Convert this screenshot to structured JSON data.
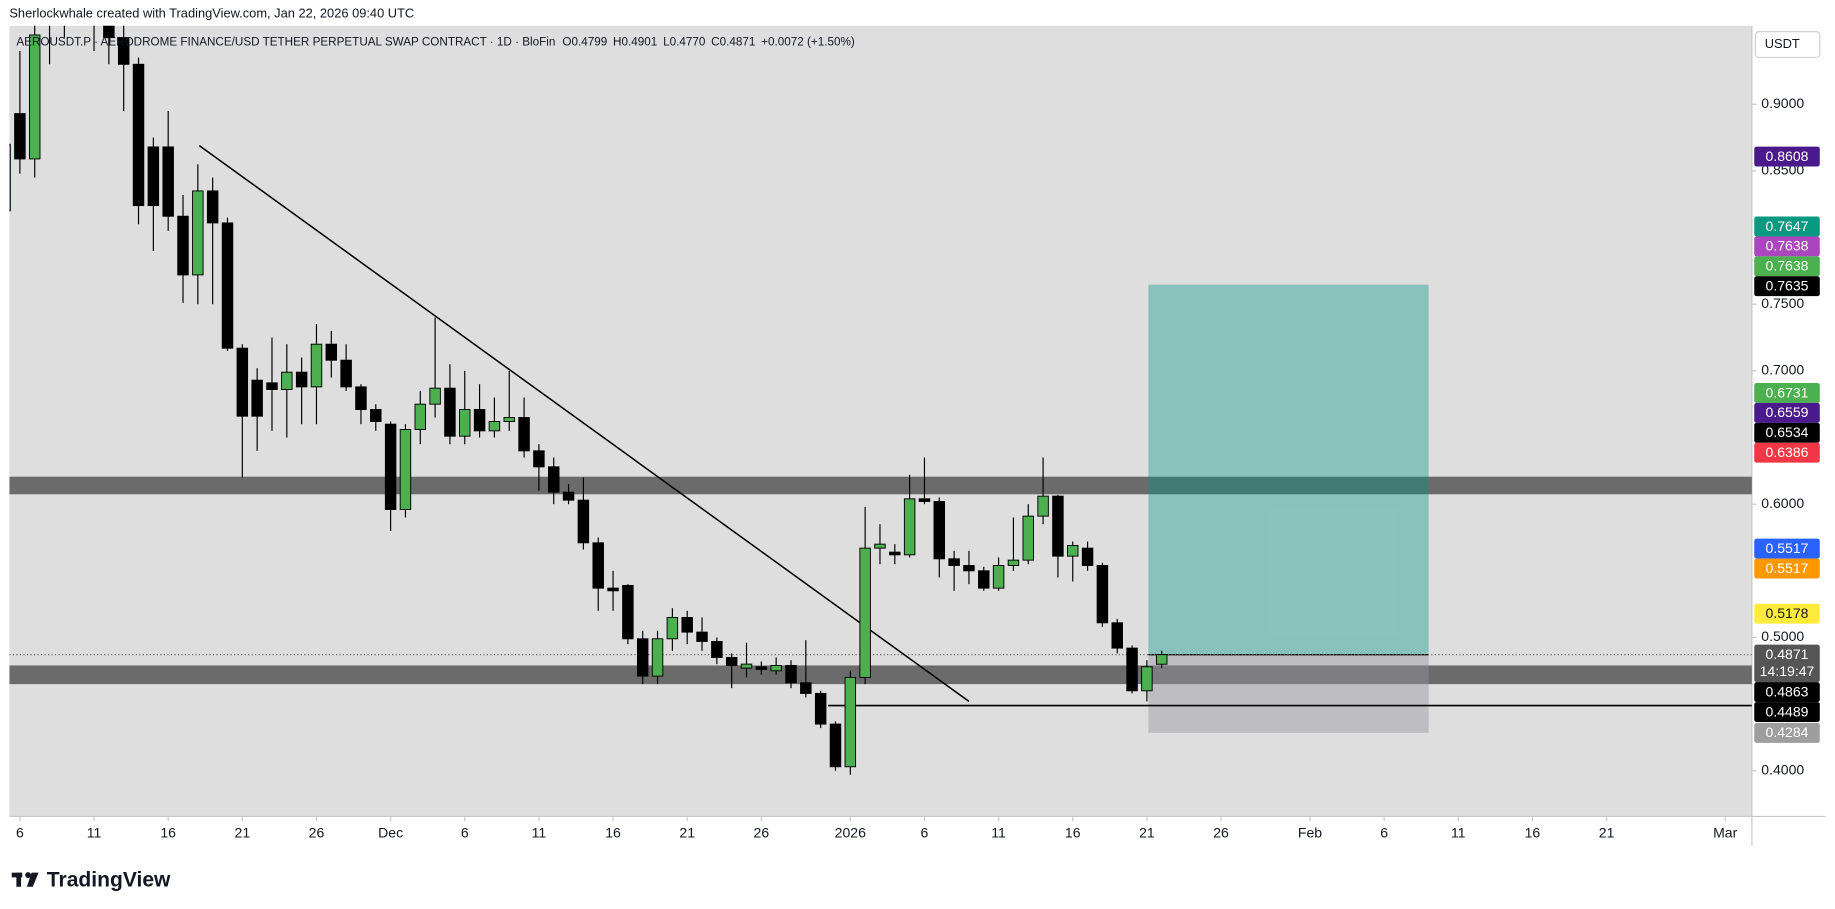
{
  "chart_data": {
    "type": "candlestick",
    "attribution": "Sherlockwhale created with TradingView.com, Jan 22, 2026 09:40 UTC",
    "symbol": "AEROUSDT.P · AERODROME FINANCE/USD TETHER PERPETUAL SWAP CONTRACT · 1D · BloFin",
    "legend_values": [
      "O0.4799",
      "H0.4901",
      "L0.4770",
      "C0.4871",
      "+0.0072 (+1.50%)"
    ],
    "currency": "USDT",
    "brand": "TradingView",
    "up_color": "#4caf50",
    "down_color": "#000000",
    "candles": [
      [
        0.82,
        0.88,
        0.81,
        0.87
      ],
      [
        0.893,
        0.94,
        0.848,
        0.859
      ],
      [
        0.859,
        0.96,
        0.845,
        0.952
      ],
      [
        0.96,
        1.0,
        0.93,
        0.97
      ],
      [
        0.97,
        1.02,
        0.95,
        1.0
      ],
      [
        1.0,
        1.03,
        0.96,
        0.98
      ],
      [
        0.98,
        0.99,
        0.94,
        0.96
      ],
      [
        0.96,
        0.98,
        0.93,
        0.95
      ],
      [
        0.95,
        0.97,
        0.895,
        0.93
      ],
      [
        0.93,
        0.935,
        0.81,
        0.824
      ],
      [
        0.868,
        0.875,
        0.79,
        0.824
      ],
      [
        0.868,
        0.895,
        0.805,
        0.816
      ],
      [
        0.816,
        0.832,
        0.751,
        0.772
      ],
      [
        0.772,
        0.855,
        0.75,
        0.835
      ],
      [
        0.835,
        0.845,
        0.75,
        0.811
      ],
      [
        0.811,
        0.815,
        0.715,
        0.717
      ],
      [
        0.717,
        0.72,
        0.62,
        0.666
      ],
      [
        0.693,
        0.702,
        0.64,
        0.666
      ],
      [
        0.691,
        0.725,
        0.655,
        0.686
      ],
      [
        0.686,
        0.72,
        0.65,
        0.699
      ],
      [
        0.699,
        0.71,
        0.66,
        0.688
      ],
      [
        0.688,
        0.735,
        0.66,
        0.72
      ],
      [
        0.72,
        0.73,
        0.695,
        0.708
      ],
      [
        0.708,
        0.72,
        0.685,
        0.688
      ],
      [
        0.688,
        0.69,
        0.66,
        0.671
      ],
      [
        0.671,
        0.675,
        0.655,
        0.662
      ],
      [
        0.66,
        0.662,
        0.58,
        0.596
      ],
      [
        0.596,
        0.66,
        0.59,
        0.656
      ],
      [
        0.656,
        0.685,
        0.645,
        0.675
      ],
      [
        0.675,
        0.74,
        0.665,
        0.687
      ],
      [
        0.687,
        0.705,
        0.645,
        0.651
      ],
      [
        0.651,
        0.7,
        0.645,
        0.671
      ],
      [
        0.671,
        0.69,
        0.65,
        0.655
      ],
      [
        0.655,
        0.68,
        0.65,
        0.662
      ],
      [
        0.662,
        0.7,
        0.655,
        0.665
      ],
      [
        0.665,
        0.68,
        0.635,
        0.64
      ],
      [
        0.64,
        0.645,
        0.61,
        0.628
      ],
      [
        0.628,
        0.635,
        0.6,
        0.609
      ],
      [
        0.609,
        0.615,
        0.6,
        0.603
      ],
      [
        0.603,
        0.62,
        0.566,
        0.571
      ],
      [
        0.571,
        0.575,
        0.52,
        0.537
      ],
      [
        0.537,
        0.55,
        0.52,
        0.535
      ],
      [
        0.539,
        0.54,
        0.495,
        0.499
      ],
      [
        0.499,
        0.505,
        0.465,
        0.471
      ],
      [
        0.471,
        0.505,
        0.465,
        0.499
      ],
      [
        0.499,
        0.522,
        0.49,
        0.515
      ],
      [
        0.515,
        0.52,
        0.495,
        0.504
      ],
      [
        0.504,
        0.515,
        0.49,
        0.497
      ],
      [
        0.497,
        0.5,
        0.48,
        0.485
      ],
      [
        0.485,
        0.488,
        0.462,
        0.479
      ],
      [
        0.477,
        0.496,
        0.47,
        0.48
      ],
      [
        0.478,
        0.482,
        0.472,
        0.476
      ],
      [
        0.475,
        0.485,
        0.472,
        0.479
      ],
      [
        0.479,
        0.483,
        0.462,
        0.466
      ],
      [
        0.466,
        0.498,
        0.455,
        0.458
      ],
      [
        0.458,
        0.46,
        0.432,
        0.435
      ],
      [
        0.435,
        0.437,
        0.4,
        0.403
      ],
      [
        0.403,
        0.475,
        0.397,
        0.47
      ],
      [
        0.47,
        0.598,
        0.465,
        0.567
      ],
      [
        0.567,
        0.585,
        0.555,
        0.57
      ],
      [
        0.564,
        0.57,
        0.555,
        0.562
      ],
      [
        0.562,
        0.622,
        0.56,
        0.604
      ],
      [
        0.604,
        0.635,
        0.6,
        0.602
      ],
      [
        0.602,
        0.605,
        0.545,
        0.559
      ],
      [
        0.559,
        0.565,
        0.535,
        0.554
      ],
      [
        0.554,
        0.565,
        0.54,
        0.55
      ],
      [
        0.55,
        0.553,
        0.535,
        0.537
      ],
      [
        0.537,
        0.56,
        0.535,
        0.554
      ],
      [
        0.554,
        0.59,
        0.55,
        0.558
      ],
      [
        0.558,
        0.6,
        0.555,
        0.591
      ],
      [
        0.591,
        0.635,
        0.585,
        0.606
      ],
      [
        0.606,
        0.607,
        0.545,
        0.561
      ],
      [
        0.561,
        0.572,
        0.542,
        0.569
      ],
      [
        0.567,
        0.572,
        0.55,
        0.554
      ],
      [
        0.554,
        0.556,
        0.508,
        0.511
      ],
      [
        0.511,
        0.514,
        0.488,
        0.492
      ],
      [
        0.492,
        0.494,
        0.458,
        0.46
      ],
      [
        0.46,
        0.483,
        0.452,
        0.478
      ],
      [
        0.4799,
        0.4901,
        0.477,
        0.4871
      ]
    ],
    "xlim": [
      0.29,
      117.8
    ],
    "xticks": [
      {
        "value": 1,
        "label": "6"
      },
      {
        "value": 6,
        "label": "11"
      },
      {
        "value": 11,
        "label": "16"
      },
      {
        "value": 16,
        "label": "21"
      },
      {
        "value": 21,
        "label": "26"
      },
      {
        "value": 26,
        "label": "Dec"
      },
      {
        "value": 31,
        "label": "6"
      },
      {
        "value": 36,
        "label": "11"
      },
      {
        "value": 41,
        "label": "16"
      },
      {
        "value": 46,
        "label": "21"
      },
      {
        "value": 51,
        "label": "26"
      },
      {
        "value": 57,
        "label": "2026"
      },
      {
        "value": 62,
        "label": "6"
      },
      {
        "value": 67,
        "label": "11"
      },
      {
        "value": 72,
        "label": "16"
      },
      {
        "value": 77,
        "label": "21"
      },
      {
        "value": 82,
        "label": "26"
      },
      {
        "value": 88,
        "label": "Feb"
      },
      {
        "value": 93,
        "label": "6"
      },
      {
        "value": 98,
        "label": "11"
      },
      {
        "value": 103,
        "label": "16"
      },
      {
        "value": 108,
        "label": "21"
      },
      {
        "value": 116,
        "label": "Mar"
      }
    ],
    "ylim": [
      0.3657,
      0.9589
    ],
    "yticks": [
      {
        "value": 0.4,
        "label": "0.4000"
      },
      {
        "value": 0.5,
        "label": "0.5000"
      },
      {
        "value": 0.6,
        "label": "0.6000"
      },
      {
        "value": 0.7,
        "label": "0.7000"
      },
      {
        "value": 0.75,
        "label": "0.7500"
      },
      {
        "value": 0.85,
        "label": "0.8500"
      },
      {
        "value": 0.9,
        "label": "0.9000"
      }
    ],
    "zones": [
      [
        0.6074,
        0.6206
      ],
      [
        0.465,
        0.479
      ]
    ],
    "trendline": {
      "x": [
        13.1,
        65.0
      ],
      "y": [
        0.869,
        0.452
      ]
    },
    "level": {
      "x": 55.5,
      "y": 0.4489
    },
    "position": {
      "x": [
        77.1,
        96.0
      ],
      "entry": 0.4871,
      "target": 0.7647,
      "stop": 0.4284
    },
    "price_labels": [
      {
        "value": 0.8608,
        "label": "0.8608",
        "color": "#4a1a8c"
      },
      {
        "value": 0.7647,
        "label": "0.7647",
        "color": "#089981"
      },
      {
        "value": 0.7638,
        "label": "0.7638",
        "color": "#ab47bc"
      },
      {
        "value": 0.7638,
        "label": "0.7638",
        "color": "#4caf50"
      },
      {
        "value": 0.7635,
        "label": "0.7635",
        "color": "#000000"
      },
      {
        "value": 0.6731,
        "label": "0.6731",
        "color": "#4caf50"
      },
      {
        "value": 0.6559,
        "label": "0.6559",
        "color": "#4a1a8c"
      },
      {
        "value": 0.6534,
        "label": "0.6534",
        "color": "#000000"
      },
      {
        "value": 0.6386,
        "label": "0.6386",
        "color": "#f23645"
      },
      {
        "value": 0.5517,
        "label": "0.5517",
        "color": "#2962ff"
      },
      {
        "value": 0.5517,
        "label": "0.5517",
        "color": "#ff9800"
      },
      {
        "value": 0.5178,
        "label": "0.5178",
        "color": "#ffeb3b"
      },
      {
        "value": 0.4871,
        "label": "0.4871",
        "color": "#555555",
        "countdown": "14:19:47"
      },
      {
        "value": 0.4863,
        "label": "0.4863",
        "color": "#000000"
      },
      {
        "value": 0.4489,
        "label": "0.4489",
        "color": "#000000"
      },
      {
        "value": 0.4284,
        "label": "0.4284",
        "color": "#9e9e9e"
      }
    ]
  }
}
